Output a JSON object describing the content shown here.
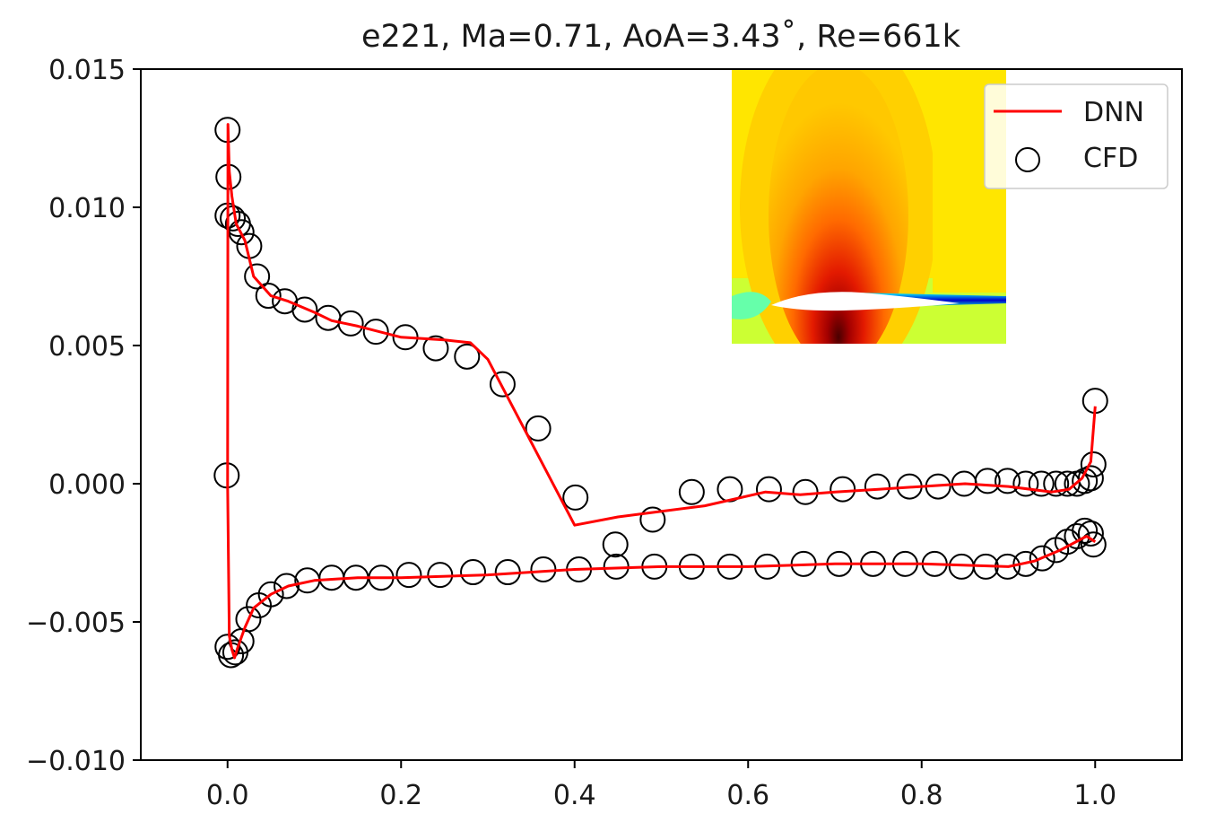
{
  "chart_data": {
    "type": "line",
    "title": "e221, Ma=0.71, AoA=3.43˚, Re=661k",
    "xlabel": "",
    "ylabel": "",
    "xlim": [
      -0.1,
      1.1
    ],
    "ylim": [
      -0.01,
      0.015
    ],
    "x_ticks": [
      0.0,
      0.2,
      0.4,
      0.6,
      0.8,
      1.0
    ],
    "x_tick_labels": [
      "0.0",
      "0.2",
      "0.4",
      "0.6",
      "0.8",
      "1.0"
    ],
    "y_ticks": [
      0.015,
      0.01,
      0.005,
      0.0,
      -0.005,
      -0.01
    ],
    "y_tick_labels": [
      "0.015",
      "0.010",
      "0.005",
      "0.000",
      "−0.005",
      "−0.010"
    ],
    "grid": false,
    "legend": {
      "position": "top-right",
      "entries": [
        {
          "label": "DNN",
          "style": "line",
          "color": "#ff0000"
        },
        {
          "label": "CFD",
          "style": "open-circle",
          "color": "#000000"
        }
      ]
    },
    "series": [
      {
        "name": "DNN",
        "style": "line",
        "color": "#ff0000",
        "points": [
          [
            1.0,
            0.0028
          ],
          [
            0.995,
            0.0008
          ],
          [
            0.985,
            0.0002
          ],
          [
            0.97,
            -0.0002
          ],
          [
            0.95,
            -0.0003
          ],
          [
            0.9,
            -0.0001
          ],
          [
            0.85,
            0.0
          ],
          [
            0.8,
            -0.0001
          ],
          [
            0.75,
            -0.0002
          ],
          [
            0.7,
            -0.0003
          ],
          [
            0.66,
            -0.0004
          ],
          [
            0.62,
            -0.0003
          ],
          [
            0.55,
            -0.0008
          ],
          [
            0.45,
            -0.0012
          ],
          [
            0.4,
            -0.0015
          ],
          [
            0.35,
            0.0015
          ],
          [
            0.3,
            0.0045
          ],
          [
            0.28,
            0.0051
          ],
          [
            0.25,
            0.0052
          ],
          [
            0.2,
            0.0053
          ],
          [
            0.15,
            0.0057
          ],
          [
            0.12,
            0.0059
          ],
          [
            0.1,
            0.0062
          ],
          [
            0.07,
            0.0066
          ],
          [
            0.05,
            0.0068
          ],
          [
            0.03,
            0.0075
          ],
          [
            0.02,
            0.0088
          ],
          [
            0.01,
            0.0094
          ],
          [
            0.005,
            0.0104
          ],
          [
            0.002,
            0.0113
          ],
          [
            0.0005,
            0.013
          ],
          [
            0.0,
            0.0
          ],
          [
            0.002,
            -0.0055
          ],
          [
            0.005,
            -0.006
          ],
          [
            0.008,
            -0.0063
          ],
          [
            0.012,
            -0.0059
          ],
          [
            0.02,
            -0.0052
          ],
          [
            0.03,
            -0.0045
          ],
          [
            0.05,
            -0.004
          ],
          [
            0.07,
            -0.0037
          ],
          [
            0.1,
            -0.0035
          ],
          [
            0.15,
            -0.0034
          ],
          [
            0.2,
            -0.0034
          ],
          [
            0.3,
            -0.0033
          ],
          [
            0.4,
            -0.0031
          ],
          [
            0.5,
            -0.003
          ],
          [
            0.6,
            -0.003
          ],
          [
            0.7,
            -0.0029
          ],
          [
            0.8,
            -0.0029
          ],
          [
            0.9,
            -0.003
          ],
          [
            0.93,
            -0.0028
          ],
          [
            0.96,
            -0.0024
          ],
          [
            0.99,
            -0.0019
          ],
          [
            1.0,
            -0.0021
          ]
        ]
      },
      {
        "name": "CFD",
        "style": "open-circle",
        "color": "#000000",
        "points": [
          [
            0.0,
            0.0128
          ],
          [
            0.001,
            0.0111
          ],
          [
            0.0,
            0.0097
          ],
          [
            0.006,
            0.0096
          ],
          [
            0.012,
            0.0094
          ],
          [
            0.016,
            0.0091
          ],
          [
            0.025,
            0.0086
          ],
          [
            0.034,
            0.0075
          ],
          [
            0.047,
            0.0068
          ],
          [
            0.066,
            0.0066
          ],
          [
            0.089,
            0.0063
          ],
          [
            0.116,
            0.006
          ],
          [
            0.142,
            0.0058
          ],
          [
            0.171,
            0.0055
          ],
          [
            0.205,
            0.0053
          ],
          [
            0.24,
            0.0049
          ],
          [
            0.276,
            0.0046
          ],
          [
            0.317,
            0.0036
          ],
          [
            0.358,
            0.002
          ],
          [
            0.401,
            -0.0005
          ],
          [
            0.447,
            -0.0022
          ],
          [
            0.49,
            -0.0013
          ],
          [
            0.535,
            -0.0003
          ],
          [
            0.579,
            -0.0002
          ],
          [
            0.624,
            -0.0002
          ],
          [
            0.666,
            -0.0003
          ],
          [
            0.709,
            -0.0002
          ],
          [
            0.749,
            -0.0001
          ],
          [
            0.786,
            -0.0001
          ],
          [
            0.819,
            -0.0001
          ],
          [
            0.849,
            0.0
          ],
          [
            0.876,
            0.0001
          ],
          [
            0.899,
            0.0001
          ],
          [
            0.92,
            0.0
          ],
          [
            0.938,
            0.0
          ],
          [
            0.955,
            0.0
          ],
          [
            0.968,
            0.0
          ],
          [
            0.979,
            0.0
          ],
          [
            0.988,
            0.0001
          ],
          [
            0.995,
            0.0002
          ],
          [
            0.998,
            0.0007
          ],
          [
            1.0,
            0.003
          ],
          [
            -0.001,
            0.0003
          ],
          [
            0.0,
            -0.0059
          ],
          [
            0.004,
            -0.0062
          ],
          [
            0.009,
            -0.0061
          ],
          [
            0.016,
            -0.0057
          ],
          [
            0.024,
            -0.0049
          ],
          [
            0.036,
            -0.0044
          ],
          [
            0.05,
            -0.004
          ],
          [
            0.068,
            -0.0037
          ],
          [
            0.092,
            -0.0035
          ],
          [
            0.12,
            -0.0034
          ],
          [
            0.148,
            -0.0034
          ],
          [
            0.177,
            -0.0034
          ],
          [
            0.209,
            -0.0033
          ],
          [
            0.245,
            -0.0033
          ],
          [
            0.283,
            -0.0032
          ],
          [
            0.323,
            -0.0032
          ],
          [
            0.364,
            -0.0031
          ],
          [
            0.405,
            -0.0031
          ],
          [
            0.448,
            -0.003
          ],
          [
            0.492,
            -0.003
          ],
          [
            0.535,
            -0.003
          ],
          [
            0.579,
            -0.003
          ],
          [
            0.622,
            -0.003
          ],
          [
            0.664,
            -0.0029
          ],
          [
            0.705,
            -0.0029
          ],
          [
            0.744,
            -0.0029
          ],
          [
            0.781,
            -0.0029
          ],
          [
            0.815,
            -0.0029
          ],
          [
            0.846,
            -0.003
          ],
          [
            0.874,
            -0.003
          ],
          [
            0.899,
            -0.003
          ],
          [
            0.92,
            -0.0029
          ],
          [
            0.939,
            -0.0027
          ],
          [
            0.955,
            -0.0024
          ],
          [
            0.968,
            -0.0021
          ],
          [
            0.979,
            -0.0019
          ],
          [
            0.988,
            -0.0017
          ],
          [
            0.995,
            -0.0018
          ],
          [
            0.998,
            -0.0022
          ]
        ]
      }
    ],
    "inset": {
      "description": "flow-field contour around airfoil",
      "type": "heatmap",
      "colormap": "jet"
    }
  }
}
